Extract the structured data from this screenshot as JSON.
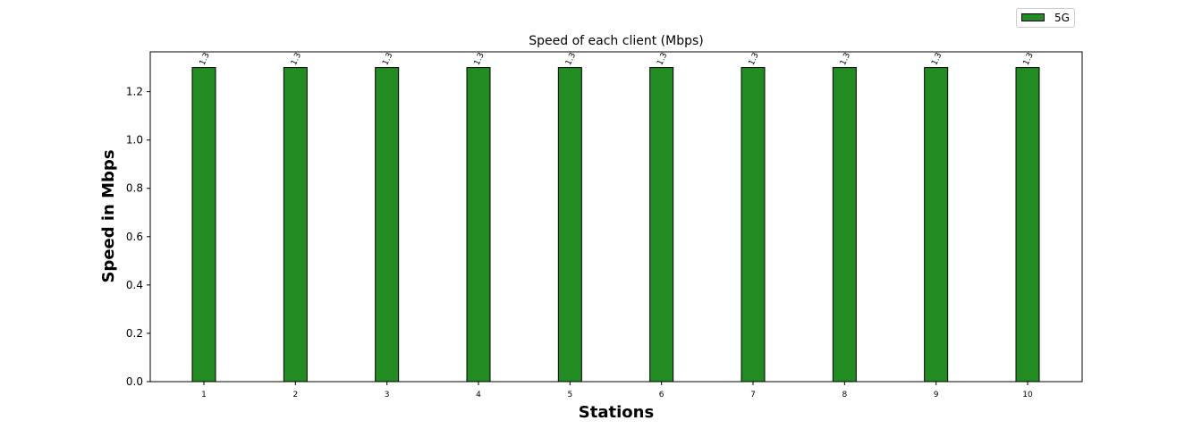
{
  "chart_data": {
    "type": "bar",
    "title": "Speed of each client (Mbps)",
    "xlabel": "Stations",
    "ylabel": "Speed in Mbps",
    "categories": [
      "1",
      "2",
      "3",
      "4",
      "5",
      "6",
      "7",
      "8",
      "9",
      "10"
    ],
    "series": [
      {
        "name": "5G",
        "color": "#228b22",
        "values": [
          1.3,
          1.3,
          1.3,
          1.3,
          1.3,
          1.3,
          1.3,
          1.3,
          1.3,
          1.3
        ],
        "data_labels": [
          "1.3",
          "1.3",
          "1.3",
          "1.3",
          "1.3",
          "1.3",
          "1.3",
          "1.3",
          "1.3",
          "1.3"
        ]
      }
    ],
    "ylim": [
      0,
      1.365
    ],
    "yticks": [
      0.0,
      0.2,
      0.4,
      0.6,
      0.8,
      1.0,
      1.2
    ],
    "ytick_labels": [
      "0.0",
      "0.2",
      "0.4",
      "0.6",
      "0.8",
      "1.0",
      "1.2"
    ],
    "grid": false,
    "legend_position": "top-right, outside plot"
  }
}
